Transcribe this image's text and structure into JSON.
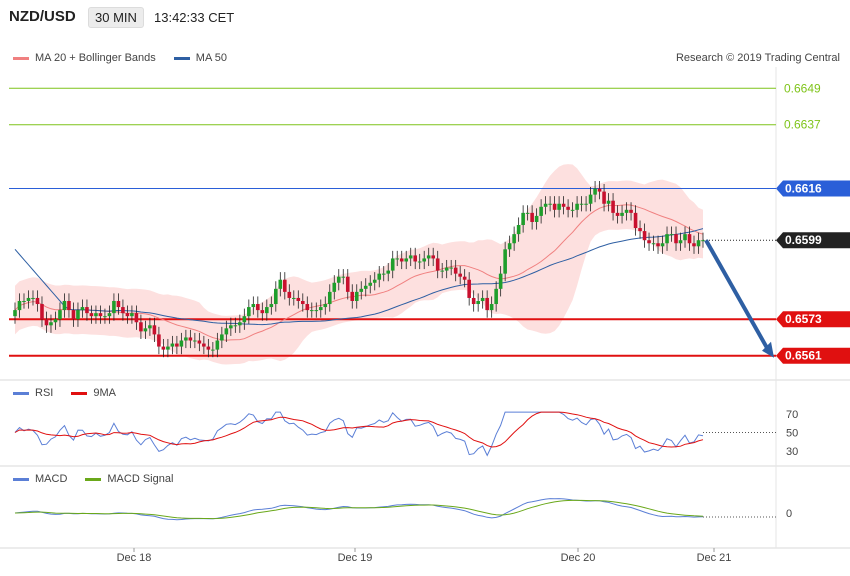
{
  "header": {
    "symbol": "NZD/USD",
    "timeframe": "30 MIN",
    "time": "13:42:33 CET"
  },
  "legend_main": [
    {
      "label": "MA 20 + Bollinger Bands",
      "color": "#f08080"
    },
    {
      "label": "MA 50",
      "color": "#2e5fa3"
    }
  ],
  "copyright": "Research © 2019 Trading Central",
  "legend_rsi": [
    {
      "label": "RSI",
      "color": "#5b7fd6"
    },
    {
      "label": "9MA",
      "color": "#e01010"
    }
  ],
  "legend_macd": [
    {
      "label": "MACD",
      "color": "#5b7fd6"
    },
    {
      "label": "MACD Signal",
      "color": "#6aa81a"
    }
  ],
  "chart_data": [
    {
      "type": "candlestick",
      "symbol": "NZD/USD",
      "interval": "30 MIN",
      "ylim": [
        0.6553,
        0.6656
      ],
      "levels": [
        {
          "value": "0.6649",
          "kind": "target",
          "color": "#7fc41a"
        },
        {
          "value": "0.6637",
          "kind": "target",
          "color": "#7fc41a"
        },
        {
          "value": "0.6616",
          "kind": "resistance",
          "color": "#2a5fd8"
        },
        {
          "value": "0.6599",
          "kind": "last",
          "color": "#222222"
        },
        {
          "value": "0.6573",
          "kind": "support",
          "color": "#e01010"
        },
        {
          "value": "0.6561",
          "kind": "support",
          "color": "#e01010"
        }
      ],
      "x_ticks": [
        "Dec 18",
        "Dec 19",
        "Dec 20",
        "Dec 21"
      ],
      "last_price": 0.6599,
      "projection": {
        "from": 0.6599,
        "to": 0.6561
      },
      "candles_close": [
        0.6576,
        0.6579,
        0.6579,
        0.658,
        0.658,
        0.6578,
        0.6573,
        0.6571,
        0.6572,
        0.6573,
        0.6576,
        0.6579,
        0.6576,
        0.6573,
        0.6576,
        0.6577,
        0.6575,
        0.6574,
        0.6575,
        0.6574,
        0.6574,
        0.6575,
        0.6579,
        0.6577,
        0.6575,
        0.6574,
        0.6575,
        0.6572,
        0.6569,
        0.657,
        0.6571,
        0.6568,
        0.6564,
        0.6563,
        0.6564,
        0.6565,
        0.6564,
        0.6566,
        0.6567,
        0.6566,
        0.6566,
        0.6565,
        0.6564,
        0.6563,
        0.6563,
        0.6566,
        0.6568,
        0.657,
        0.6571,
        0.6571,
        0.6572,
        0.6574,
        0.6577,
        0.6578,
        0.6576,
        0.6575,
        0.6577,
        0.6578,
        0.6583,
        0.6586,
        0.6582,
        0.658,
        0.658,
        0.6579,
        0.6578,
        0.6576,
        0.6576,
        0.6576,
        0.6577,
        0.6578,
        0.6582,
        0.6585,
        0.6587,
        0.6587,
        0.6582,
        0.6579,
        0.6582,
        0.6583,
        0.6584,
        0.6585,
        0.6586,
        0.6588,
        0.6588,
        0.6589,
        0.6593,
        0.6593,
        0.6592,
        0.6593,
        0.6594,
        0.6592,
        0.6592,
        0.6593,
        0.6594,
        0.6593,
        0.6589,
        0.6589,
        0.659,
        0.659,
        0.6588,
        0.6587,
        0.6586,
        0.658,
        0.6578,
        0.6579,
        0.658,
        0.6576,
        0.6578,
        0.6583,
        0.6588,
        0.6596,
        0.6598,
        0.6601,
        0.6604,
        0.6608,
        0.6608,
        0.6605,
        0.6607,
        0.661,
        0.6611,
        0.6611,
        0.6609,
        0.6611,
        0.661,
        0.6609,
        0.6609,
        0.6611,
        0.6611,
        0.6611,
        0.6614,
        0.6616,
        0.6615,
        0.6611,
        0.6612,
        0.6608,
        0.6607,
        0.6608,
        0.6609,
        0.6608,
        0.6603,
        0.6602,
        0.6599,
        0.6598,
        0.6598,
        0.6597,
        0.6598,
        0.6601,
        0.6601,
        0.6598,
        0.6599,
        0.6601,
        0.6598,
        0.6597,
        0.6599,
        0.6599
      ]
    },
    {
      "type": "line",
      "name": "RSI",
      "y_ticks": [
        70,
        50,
        30
      ],
      "series": [
        {
          "name": "RSI"
        },
        {
          "name": "9MA"
        }
      ]
    },
    {
      "type": "line",
      "name": "MACD",
      "y_ticks": [
        0
      ],
      "series": [
        {
          "name": "MACD"
        },
        {
          "name": "MACD Signal"
        }
      ]
    }
  ]
}
